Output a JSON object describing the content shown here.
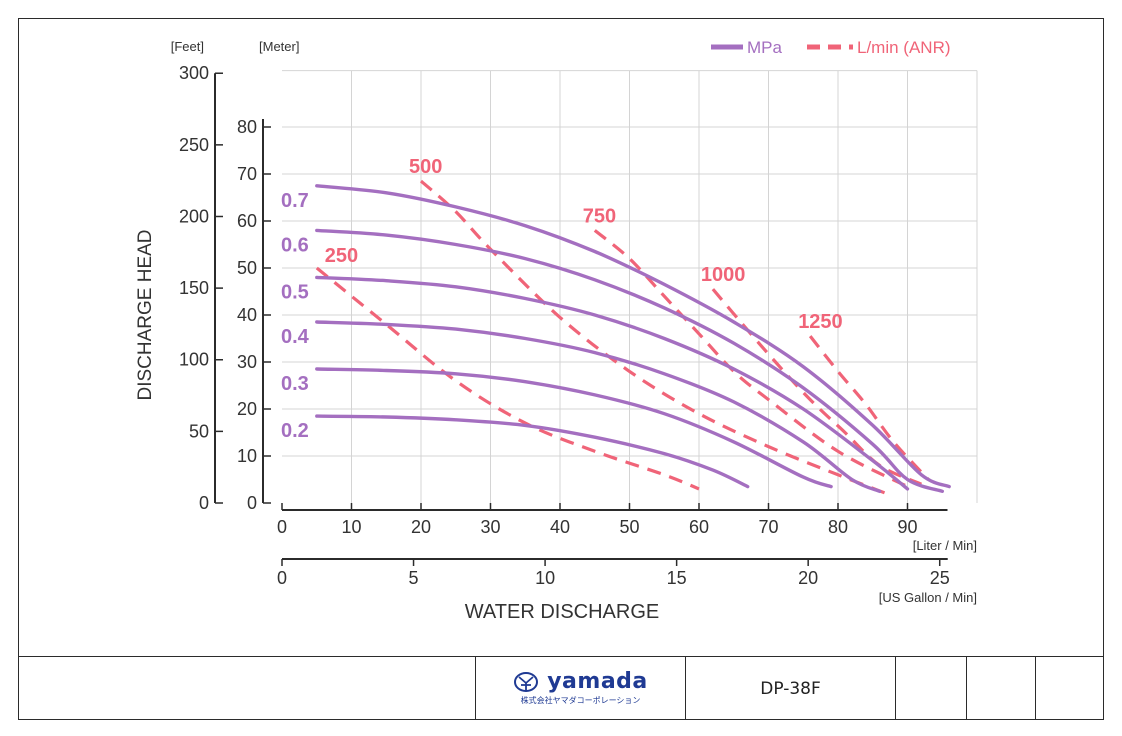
{
  "chart_data": {
    "type": "line",
    "ylabel": "DISCHARGE HEAD",
    "xlabel": "WATER DISCHARGE",
    "y_units": {
      "feet": "[Feet]",
      "meter": "[Meter]"
    },
    "x_units": {
      "liter": "[Liter / Min]",
      "gallon": "[US Gallon / Min]"
    },
    "xlim": [
      0,
      100
    ],
    "ylim_meter": [
      0,
      92
    ],
    "x_ticks_liter": [
      0,
      10,
      20,
      30,
      40,
      50,
      60,
      70,
      80,
      90
    ],
    "x_ticks_gallon": [
      0,
      5,
      10,
      15,
      20,
      25
    ],
    "y_ticks_meter": [
      0,
      10,
      20,
      30,
      40,
      50,
      60,
      70,
      80
    ],
    "y_ticks_feet": [
      0,
      50,
      100,
      150,
      200,
      250,
      300
    ],
    "grid": true,
    "legend": {
      "position": "top-right",
      "mpa": "MPa",
      "air": "L/min (ANR)"
    },
    "colors": {
      "mpa": "#a46fc0",
      "air": "#f06478"
    },
    "pressure_series": [
      {
        "name": "0.7",
        "points": [
          [
            5,
            67.5
          ],
          [
            15,
            66
          ],
          [
            25,
            63
          ],
          [
            35,
            59
          ],
          [
            45,
            53.5
          ],
          [
            55,
            46.5
          ],
          [
            65,
            38.5
          ],
          [
            75,
            29
          ],
          [
            85,
            16.5
          ],
          [
            92,
            6
          ],
          [
            96,
            3.5
          ]
        ]
      },
      {
        "name": "0.6",
        "points": [
          [
            5,
            58
          ],
          [
            15,
            57
          ],
          [
            25,
            55
          ],
          [
            35,
            52
          ],
          [
            45,
            47.5
          ],
          [
            55,
            41.5
          ],
          [
            65,
            34
          ],
          [
            75,
            24.5
          ],
          [
            85,
            12.5
          ],
          [
            90,
            5
          ],
          [
            95,
            2.5
          ]
        ]
      },
      {
        "name": "0.5",
        "points": [
          [
            5,
            48
          ],
          [
            15,
            47.3
          ],
          [
            25,
            46
          ],
          [
            35,
            43.5
          ],
          [
            45,
            40
          ],
          [
            55,
            35
          ],
          [
            65,
            28.5
          ],
          [
            75,
            20
          ],
          [
            85,
            9
          ],
          [
            90,
            3
          ]
        ]
      },
      {
        "name": "0.4",
        "points": [
          [
            5,
            38.5
          ],
          [
            15,
            38
          ],
          [
            25,
            37
          ],
          [
            35,
            35
          ],
          [
            45,
            32
          ],
          [
            55,
            27.5
          ],
          [
            65,
            21.5
          ],
          [
            75,
            13
          ],
          [
            82,
            5
          ],
          [
            86,
            2.5
          ]
        ]
      },
      {
        "name": "0.3",
        "points": [
          [
            5,
            28.5
          ],
          [
            15,
            28.2
          ],
          [
            25,
            27.5
          ],
          [
            35,
            25.8
          ],
          [
            45,
            23
          ],
          [
            55,
            19
          ],
          [
            65,
            13
          ],
          [
            75,
            5.5
          ],
          [
            79,
            3.5
          ]
        ]
      },
      {
        "name": "0.2",
        "points": [
          [
            5,
            18.5
          ],
          [
            15,
            18.3
          ],
          [
            25,
            17.7
          ],
          [
            35,
            16.5
          ],
          [
            45,
            14
          ],
          [
            55,
            10.5
          ],
          [
            62,
            7
          ],
          [
            67,
            3.5
          ]
        ]
      }
    ],
    "air_series": [
      {
        "name": "250",
        "points": [
          [
            5,
            50
          ],
          [
            15,
            38
          ],
          [
            25,
            26
          ],
          [
            35,
            17
          ],
          [
            45,
            11
          ],
          [
            55,
            6
          ],
          [
            60,
            3
          ]
        ]
      },
      {
        "name": "500",
        "points": [
          [
            20,
            68.5
          ],
          [
            25,
            62
          ],
          [
            30,
            54
          ],
          [
            40,
            39.5
          ],
          [
            50,
            28
          ],
          [
            60,
            19
          ],
          [
            70,
            12
          ],
          [
            80,
            6
          ],
          [
            87,
            2
          ]
        ]
      },
      {
        "name": "750",
        "points": [
          [
            45,
            58
          ],
          [
            50,
            52
          ],
          [
            55,
            44
          ],
          [
            60,
            36
          ],
          [
            65,
            28
          ],
          [
            70,
            22
          ],
          [
            80,
            11
          ],
          [
            90,
            3.5
          ]
        ]
      },
      {
        "name": "1000",
        "points": [
          [
            62,
            45.5
          ],
          [
            66,
            38.5
          ],
          [
            71,
            30
          ],
          [
            76,
            22
          ],
          [
            81,
            15
          ],
          [
            86,
            8
          ],
          [
            92,
            4
          ]
        ]
      },
      {
        "name": "1250",
        "points": [
          [
            76,
            35.5
          ],
          [
            80,
            28
          ],
          [
            84,
            21
          ],
          [
            88,
            13
          ],
          [
            93,
            5
          ]
        ]
      }
    ]
  },
  "footer": {
    "logo_name": "yamada",
    "logo_sub": "株式会社ヤマダコーポレーション",
    "model": "DP-38F"
  }
}
